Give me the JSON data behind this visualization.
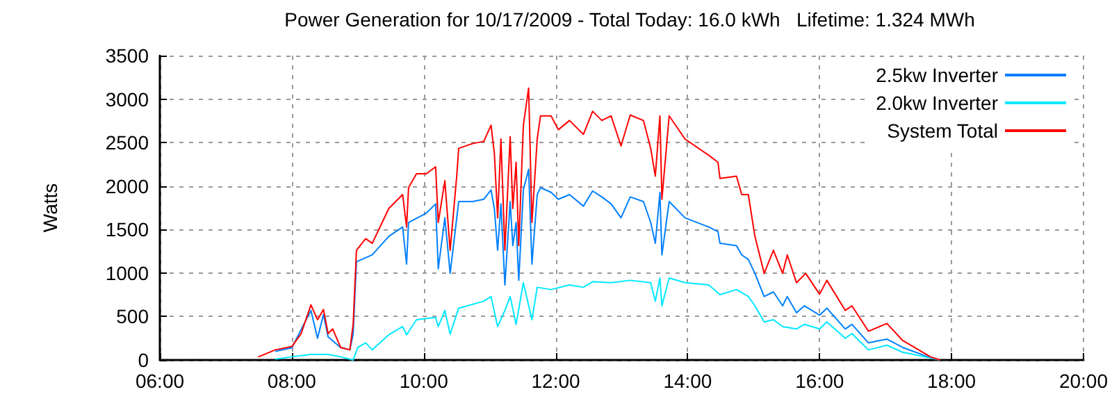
{
  "chart_data": {
    "type": "line",
    "title": "Power Generation for 10/17/2009 - Total Today: 16.0 kWh   Lifetime: 1.324 MWh",
    "ylabel": "Watts",
    "xlim": [
      6,
      20
    ],
    "xticks": [
      {
        "value": 6,
        "label": "06:00"
      },
      {
        "value": 8,
        "label": "08:00"
      },
      {
        "value": 10,
        "label": "10:00"
      },
      {
        "value": 12,
        "label": "12:00"
      },
      {
        "value": 14,
        "label": "14:00"
      },
      {
        "value": 16,
        "label": "16:00"
      },
      {
        "value": 18,
        "label": "18:00"
      },
      {
        "value": 20,
        "label": "20:00"
      }
    ],
    "ylim": [
      0,
      3500
    ],
    "yticks": [
      0,
      500,
      1000,
      1500,
      2000,
      2500,
      3000,
      3500
    ],
    "grid": true,
    "legend": "top right",
    "marker": "none",
    "line_style": "solid",
    "series": [
      {
        "name": "2.5kw Inverter",
        "color": "#0080ff",
        "x": [
          7.75,
          8.0,
          8.29,
          8.39,
          8.48,
          8.55,
          8.74,
          8.88,
          8.93,
          8.98,
          9.22,
          9.47,
          9.68,
          9.74,
          9.77,
          10.04,
          10.18,
          10.22,
          10.32,
          10.4,
          10.53,
          10.74,
          10.91,
          11.02,
          11.07,
          11.12,
          11.17,
          11.23,
          11.31,
          11.35,
          11.4,
          11.44,
          11.51,
          11.59,
          11.64,
          11.72,
          11.77,
          11.93,
          12.04,
          12.21,
          12.42,
          12.56,
          12.7,
          12.84,
          12.99,
          13.13,
          13.33,
          13.44,
          13.51,
          13.58,
          13.61,
          13.72,
          13.96,
          14.32,
          14.46,
          14.49,
          14.74,
          14.82,
          14.92,
          15.02,
          15.16,
          15.3,
          15.44,
          15.51,
          15.65,
          15.77,
          16.0,
          16.11,
          16.39,
          16.49,
          16.74,
          17.02,
          17.26,
          17.68,
          17.83
        ],
        "values": [
          100,
          140,
          570,
          250,
          526,
          266,
          144,
          117,
          298,
          1130,
          1209,
          1422,
          1529,
          1103,
          1582,
          1689,
          1795,
          1049,
          1636,
          996,
          1822,
          1822,
          1848,
          1955,
          1742,
          1262,
          1795,
          863,
          1822,
          1315,
          1582,
          916,
          1955,
          2194,
          1103,
          1902,
          1982,
          1928,
          1848,
          1902,
          1769,
          1944,
          1875,
          1795,
          1635,
          1875,
          1822,
          1582,
          1342,
          1928,
          1209,
          1822,
          1635,
          1529,
          1475,
          1342,
          1315,
          1209,
          1156,
          996,
          730,
          783,
          623,
          730,
          543,
          623,
          516,
          596,
          357,
          410,
          197,
          240,
          144,
          27,
          0
        ]
      },
      {
        "name": "2.0kw Inverter",
        "color": "#00e8ff",
        "x": [
          7.75,
          8.0,
          8.29,
          8.55,
          8.74,
          8.93,
          9.0,
          9.12,
          9.22,
          9.47,
          9.68,
          9.74,
          9.89,
          10.18,
          10.22,
          10.32,
          10.4,
          10.53,
          10.91,
          11.02,
          11.12,
          11.23,
          11.31,
          11.4,
          11.51,
          11.64,
          11.72,
          11.93,
          12.21,
          12.42,
          12.56,
          12.84,
          13.13,
          13.44,
          13.51,
          13.58,
          13.61,
          13.72,
          13.96,
          14.32,
          14.49,
          14.74,
          14.92,
          15.02,
          15.16,
          15.3,
          15.44,
          15.65,
          15.77,
          16.0,
          16.11,
          16.39,
          16.49,
          16.74,
          17.02,
          17.26,
          17.68,
          17.83
        ],
        "values": [
          10,
          37,
          64,
          64,
          37,
          0,
          144,
          197,
          117,
          290,
          384,
          290,
          463,
          490,
          384,
          570,
          298,
          596,
          676,
          730,
          384,
          570,
          730,
          410,
          889,
          463,
          836,
          810,
          863,
          836,
          900,
          889,
          916,
          889,
          676,
          943,
          623,
          943,
          889,
          863,
          751,
          810,
          730,
          623,
          437,
          463,
          384,
          357,
          410,
          357,
          437,
          250,
          304,
          117,
          170,
          90,
          23,
          0
        ]
      },
      {
        "name": "System Total",
        "color": "#ff0000",
        "x": [
          7.49,
          7.75,
          8.0,
          8.14,
          8.29,
          8.39,
          8.48,
          8.55,
          8.62,
          8.74,
          8.88,
          8.93,
          8.98,
          9.12,
          9.22,
          9.47,
          9.68,
          9.74,
          9.77,
          9.89,
          10.04,
          10.18,
          10.22,
          10.32,
          10.4,
          10.5,
          10.53,
          10.74,
          10.91,
          11.02,
          11.07,
          11.12,
          11.17,
          11.23,
          11.31,
          11.35,
          11.4,
          11.44,
          11.51,
          11.59,
          11.64,
          11.72,
          11.77,
          11.93,
          12.04,
          12.21,
          12.42,
          12.56,
          12.7,
          12.84,
          12.99,
          13.13,
          13.33,
          13.44,
          13.51,
          13.58,
          13.61,
          13.72,
          13.96,
          14.32,
          14.46,
          14.49,
          14.74,
          14.82,
          14.92,
          15.02,
          15.16,
          15.3,
          15.44,
          15.51,
          15.65,
          15.79,
          16.0,
          16.11,
          16.39,
          16.49,
          16.74,
          17.02,
          17.26,
          17.68,
          17.83
        ],
        "values": [
          35,
          117,
          155,
          300,
          634,
          463,
          580,
          304,
          357,
          144,
          117,
          410,
          1262,
          1395,
          1342,
          1742,
          1902,
          1529,
          1982,
          2141,
          2141,
          2221,
          1582,
          2061,
          1262,
          2114,
          2434,
          2488,
          2514,
          2700,
          2381,
          1635,
          2541,
          1262,
          2568,
          1742,
          2274,
          1315,
          2700,
          3127,
          1582,
          2541,
          2807,
          2807,
          2648,
          2754,
          2594,
          2860,
          2754,
          2807,
          2461,
          2817,
          2754,
          2434,
          2114,
          2807,
          1848,
          2807,
          2541,
          2354,
          2274,
          2088,
          2114,
          1902,
          1902,
          1422,
          996,
          1262,
          996,
          1209,
          889,
          996,
          756,
          916,
          570,
          623,
          331,
          420,
          224,
          37,
          0
        ]
      }
    ]
  }
}
